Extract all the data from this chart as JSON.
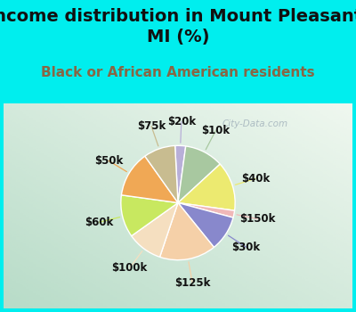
{
  "title": "Income distribution in Mount Pleasant,\nMI (%)",
  "subtitle": "Black or African American residents",
  "labels": [
    "$20k",
    "$10k",
    "$40k",
    "$150k",
    "$30k",
    "$125k",
    "$100k",
    "$60k",
    "$50k",
    "$75k"
  ],
  "sizes": [
    3,
    11,
    14,
    2,
    10,
    16,
    10,
    12,
    13,
    9
  ],
  "colors": [
    "#b8afd8",
    "#a8c8a0",
    "#ecea70",
    "#f0b8b8",
    "#8888cc",
    "#f5d0a8",
    "#f5dfc0",
    "#c8e860",
    "#f0a855",
    "#c8bc90"
  ],
  "bg_outer": "#00eeee",
  "bg_chart_topleft": "#c8e8d8",
  "bg_chart_bottomright": "#e8f8f0",
  "title_color": "#111111",
  "title_fontsize": 14,
  "subtitle_color": "#886644",
  "subtitle_fontsize": 11,
  "label_fontsize": 8.5,
  "label_color": "#111111",
  "watermark": "City-Data.com",
  "startangle": 93,
  "line_colors": [
    "#b8afd8",
    "#a8c8a0",
    "#ecea70",
    "#f0b8b8",
    "#8888cc",
    "#f5d0a8",
    "#f5dfc0",
    "#c8e860",
    "#f0a855",
    "#c8bc90"
  ]
}
